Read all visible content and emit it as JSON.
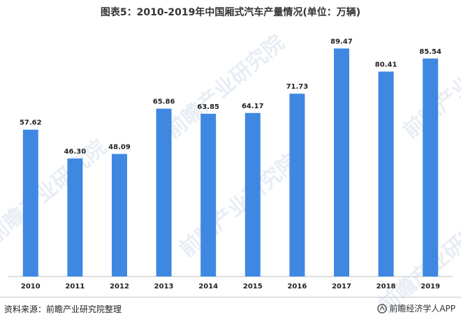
{
  "title": "图表5：2010-2019年中国厢式汽车产量情况(单位：万辆)",
  "source": "资料来源：前瞻产业研究院整理",
  "brand": "前瞻经济学人APP",
  "watermark": "前瞻产业研究院",
  "colors": {
    "bar": "#3f88e2",
    "axis": "#bfbfbf",
    "label": "#222222"
  },
  "chart_data": {
    "type": "bar",
    "title": "图表5：2010-2019年中国厢式汽车产量情况(单位：万辆)",
    "categories": [
      "2010",
      "2011",
      "2012",
      "2013",
      "2014",
      "2015",
      "2016",
      "2017",
      "2018",
      "2019"
    ],
    "values": [
      57.62,
      46.3,
      48.09,
      65.86,
      63.85,
      64.17,
      71.73,
      89.47,
      80.41,
      85.54
    ],
    "value_labels": [
      "57.62",
      "46.30",
      "48.09",
      "65.86",
      "63.85",
      "64.17",
      "71.73",
      "89.47",
      "80.41",
      "85.54"
    ],
    "xlabel": "",
    "ylabel": "",
    "ylim": [
      0,
      100
    ],
    "grid": false,
    "legend": "none"
  }
}
